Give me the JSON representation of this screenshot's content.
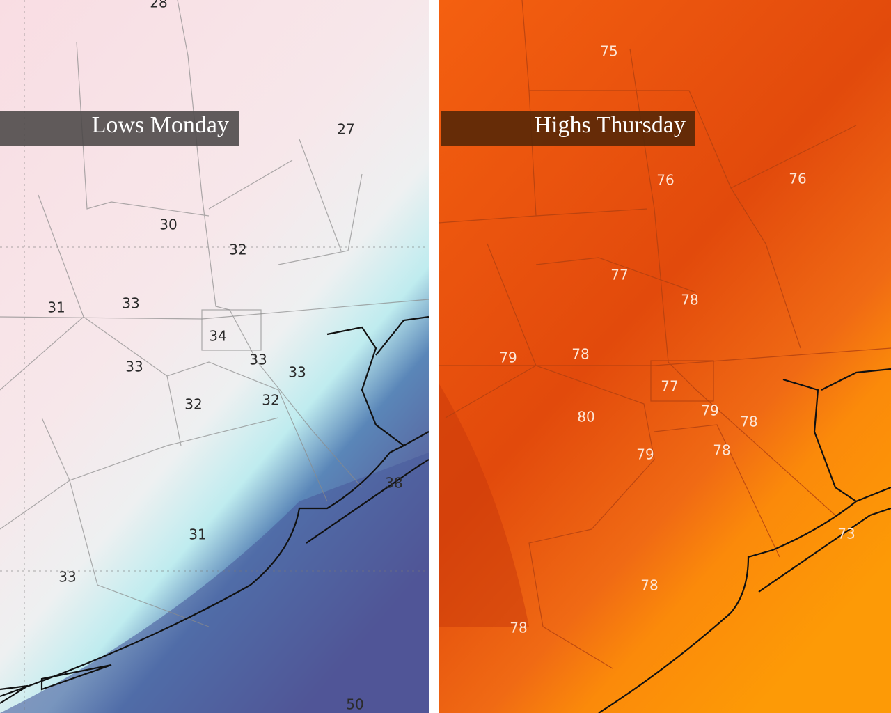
{
  "panels": [
    {
      "title": "Lows Monday",
      "labels": [
        28,
        27,
        30,
        32,
        31,
        33,
        34,
        33,
        33,
        33,
        32,
        32,
        38,
        31,
        33,
        50
      ]
    },
    {
      "title": "Highs Thursday",
      "labels": [
        75,
        76,
        76,
        77,
        78,
        79,
        78,
        77,
        79,
        78,
        80,
        79,
        78,
        73,
        78,
        78
      ]
    }
  ]
}
